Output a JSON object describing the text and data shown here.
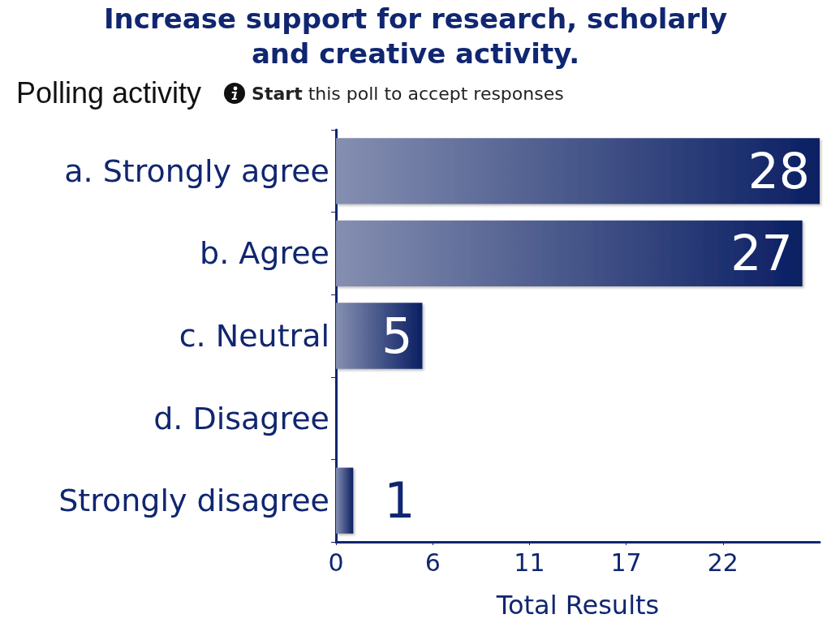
{
  "chart_data": {
    "type": "bar",
    "orientation": "horizontal",
    "title": "Increase support for research, scholarly and creative activity.",
    "subtitle": "Start this poll to accept responses",
    "annotations": [
      "Polling activity"
    ],
    "xlabel": "Total Results",
    "categories": [
      "a. Strongly agree",
      "b. Agree",
      "c. Neutral",
      "d. Disagree",
      "Strongly disagree"
    ],
    "values": [
      28,
      27,
      5,
      0,
      1
    ],
    "color": "#0a1f63",
    "value_labels": [
      "28",
      "27",
      "5",
      null,
      "1"
    ],
    "xlim": [
      0,
      28
    ],
    "xticks": [
      0,
      {
        "value": 5.6,
        "label": "6"
      },
      {
        "value": 11.2,
        "label": "11"
      },
      {
        "value": 16.8,
        "label": "17"
      },
      {
        "value": 22.4,
        "label": "22"
      }
    ]
  }
}
